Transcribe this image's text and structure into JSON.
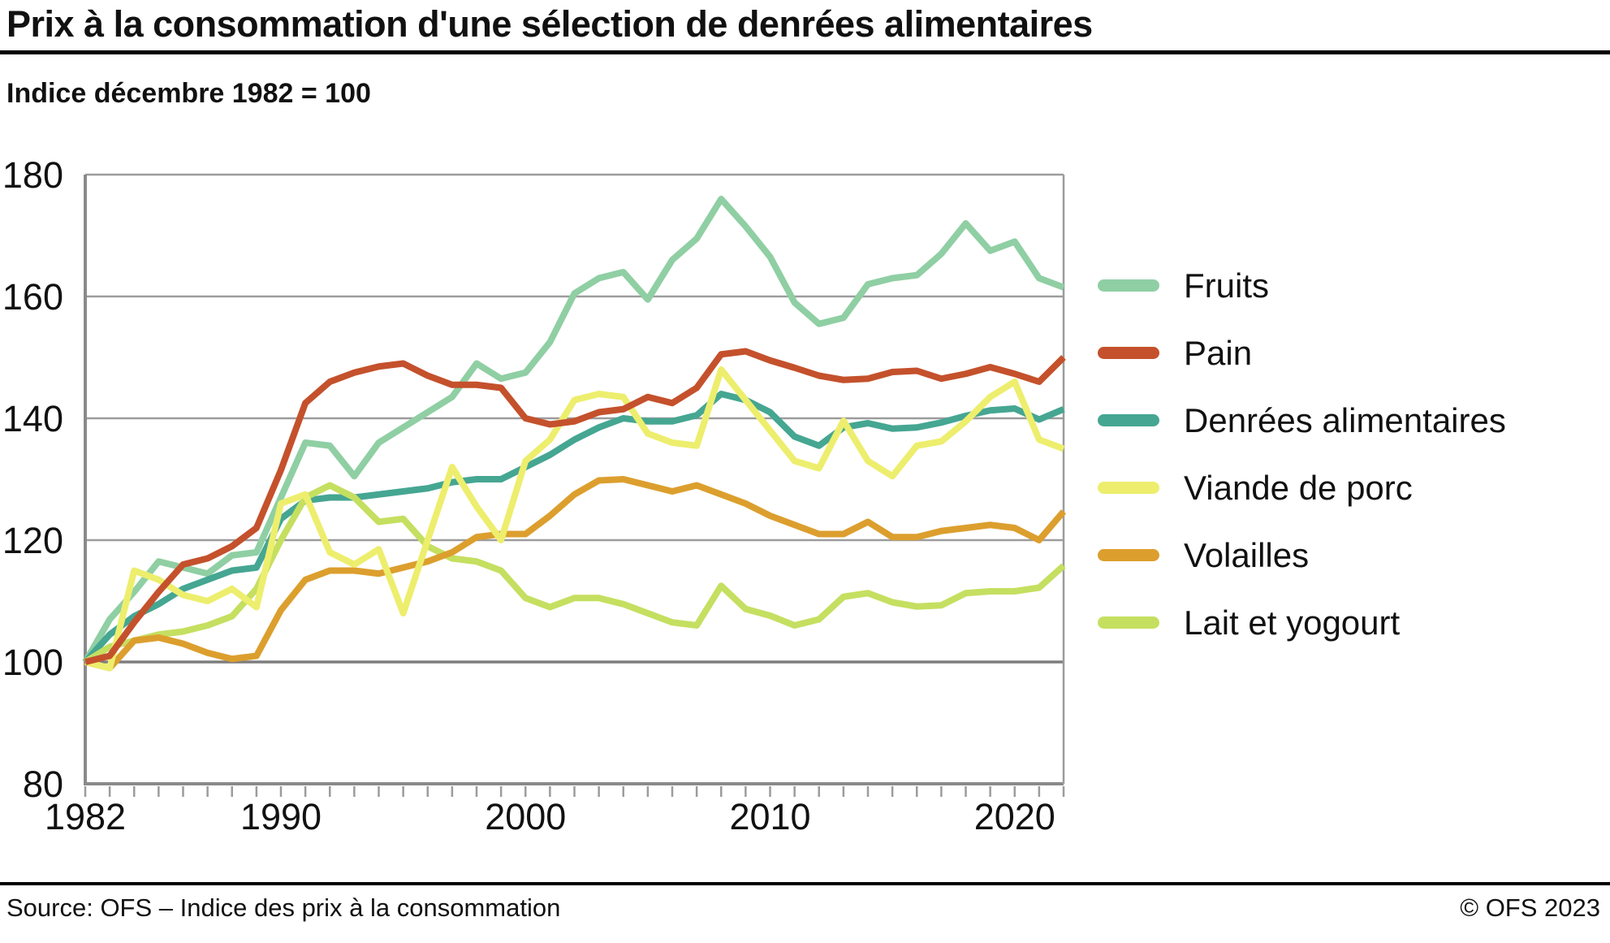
{
  "header": {
    "title": "Prix à la consommation d'une sélection de denrées alimentaires",
    "subtitle": "Indice décembre 1982 = 100"
  },
  "chart_data": {
    "type": "line",
    "title": "Prix à la consommation d'une sélection de denrées alimentaires",
    "subtitle": "Indice décembre 1982 = 100",
    "xlabel": "",
    "ylabel": "",
    "x_start": 1982,
    "x_end": 2022,
    "x_step": 1,
    "ylim": [
      80,
      180
    ],
    "yticks": [
      80,
      100,
      120,
      140,
      160,
      180
    ],
    "xticks": [
      1982,
      1990,
      2000,
      2010,
      2020
    ],
    "grid": "horizontal",
    "baseline_value": 100,
    "legend_position": "right",
    "draw_order": [
      0,
      2,
      5,
      4,
      3,
      1
    ],
    "years": [
      1982,
      1983,
      1984,
      1985,
      1986,
      1987,
      1988,
      1989,
      1990,
      1991,
      1992,
      1993,
      1994,
      1995,
      1996,
      1997,
      1998,
      1999,
      2000,
      2001,
      2002,
      2003,
      2004,
      2005,
      2006,
      2007,
      2008,
      2009,
      2010,
      2011,
      2012,
      2013,
      2014,
      2015,
      2016,
      2017,
      2018,
      2019,
      2020,
      2021,
      2022
    ],
    "series": [
      {
        "id": "fruits",
        "name": "Fruits",
        "color": "#8FCFA3",
        "values": [
          100,
          107,
          111.5,
          116.5,
          115.5,
          114.5,
          117.5,
          118,
          127,
          136,
          135.5,
          130.5,
          136,
          138.5,
          141,
          143.5,
          149,
          146.5,
          147.5,
          152.5,
          160.5,
          163,
          164,
          159.5,
          166,
          169.5,
          176,
          171.5,
          166.5,
          159,
          155.5,
          156.5,
          162,
          163,
          163.5,
          167,
          172,
          167.5,
          169,
          163,
          161.5
        ]
      },
      {
        "id": "pain",
        "name": "Pain",
        "color": "#C4512C",
        "values": [
          100,
          101,
          106.5,
          111.5,
          116,
          117,
          119,
          122,
          131.5,
          142.5,
          146,
          147.5,
          148.5,
          149,
          147,
          145.5,
          145.5,
          145,
          140,
          139,
          139.5,
          141,
          141.5,
          143.5,
          142.5,
          145,
          150.5,
          151,
          149.5,
          148.3,
          147,
          146.3,
          146.5,
          147.6,
          147.8,
          146.5,
          147.3,
          148.4,
          147.3,
          146,
          150
        ]
      },
      {
        "id": "denrees-alimentaires",
        "name": "Denrées alimentaires",
        "color": "#45A692",
        "values": [
          100,
          104.5,
          107.5,
          109.5,
          112,
          113.5,
          115,
          115.5,
          123.5,
          126.5,
          127,
          127,
          127.5,
          128,
          128.5,
          129.5,
          130,
          130,
          132,
          134,
          136.5,
          138.5,
          140,
          139.5,
          139.5,
          140.5,
          144,
          143,
          141,
          137,
          135.5,
          138.5,
          139.2,
          138.3,
          138.5,
          139.3,
          140.4,
          141.3,
          141.6,
          139.8,
          141.5
        ]
      },
      {
        "id": "viande-de-porc",
        "name": "Viande de porc",
        "color": "#EDEE6D",
        "values": [
          100,
          99,
          115,
          113.5,
          111,
          110,
          112,
          109,
          126,
          127.5,
          118,
          116,
          118.5,
          108,
          120,
          132,
          125.5,
          120,
          133,
          136.5,
          143,
          144,
          143.5,
          137.5,
          136,
          135.5,
          148,
          143,
          138,
          133,
          131.8,
          139.6,
          133,
          130.5,
          135.5,
          136.2,
          139.5,
          143.5,
          146,
          136.5,
          135
        ]
      },
      {
        "id": "volailles",
        "name": "Volailles",
        "color": "#DC9F2E",
        "values": [
          100,
          99,
          103.5,
          104,
          103,
          101.5,
          100.5,
          101,
          108.5,
          113.5,
          115,
          115,
          114.5,
          115.5,
          116.5,
          118,
          120.5,
          121,
          121,
          124,
          127.5,
          129.8,
          130,
          129,
          128,
          129,
          127.5,
          126,
          124,
          122.5,
          121,
          121,
          123,
          120.5,
          120.5,
          121.5,
          122,
          122.5,
          122,
          120,
          124.7
        ]
      },
      {
        "id": "lait-et-yogourt",
        "name": "Lait et yogourt",
        "color": "#C5DF60",
        "values": [
          100,
          102.5,
          103.5,
          104.5,
          105,
          106,
          107.5,
          112,
          120,
          127,
          129,
          127,
          123,
          123.5,
          119,
          117,
          116.5,
          115,
          110.5,
          109,
          110.5,
          110.5,
          109.5,
          108,
          106.5,
          106,
          112.5,
          108.7,
          107.6,
          106,
          107,
          110.7,
          111.3,
          109.8,
          109.1,
          109.3,
          111.3,
          111.6,
          111.6,
          112.2,
          115.8
        ]
      }
    ]
  },
  "footer": {
    "source": "Source: OFS – Indice des prix à la consommation",
    "copyright": "© OFS 2023"
  }
}
